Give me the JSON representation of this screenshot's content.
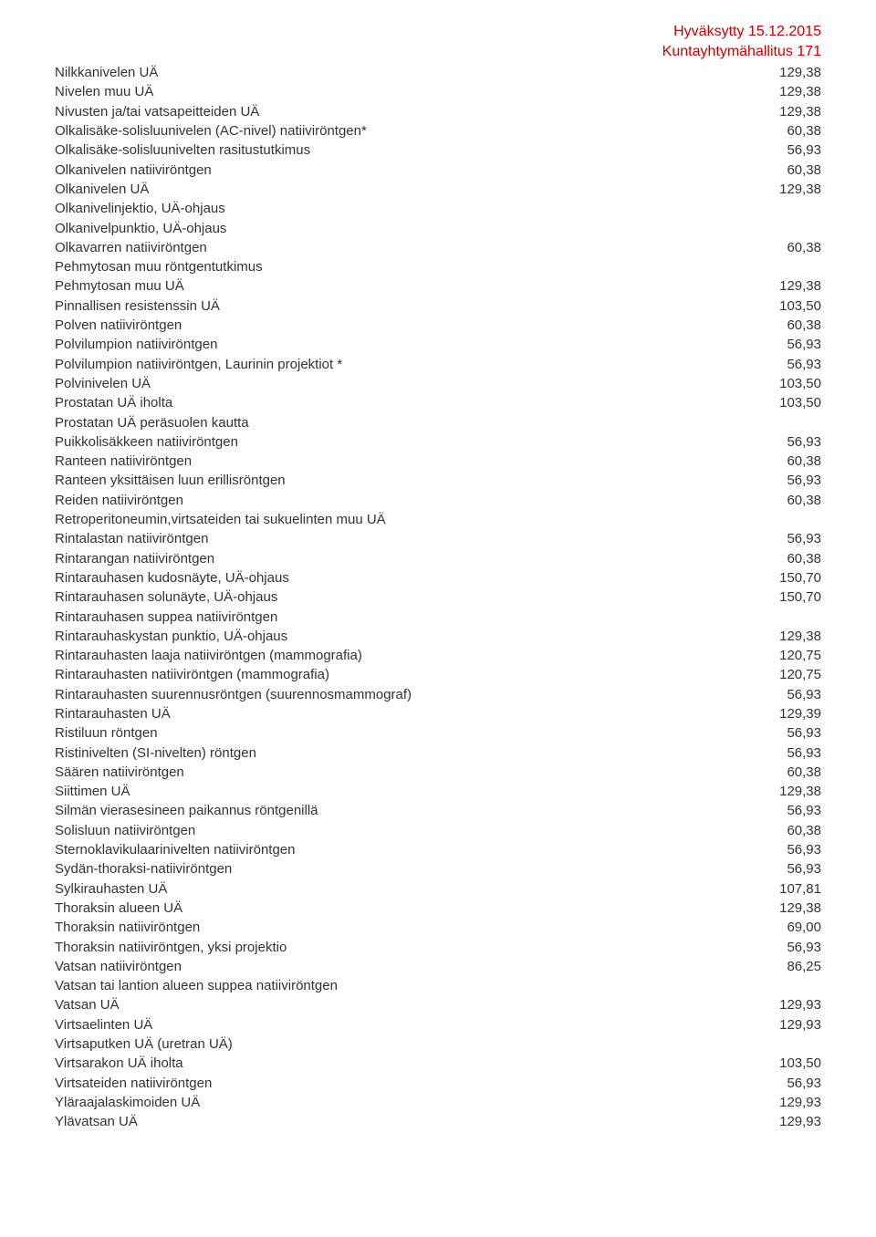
{
  "header": {
    "line1": "Hyväksytty 15.12.2015",
    "line2": "Kuntayhtymähallitus 171"
  },
  "rows": [
    {
      "label": "Nilkkanivelen UÄ",
      "value": "129,38"
    },
    {
      "label": "Nivelen muu UÄ",
      "value": "129,38"
    },
    {
      "label": "Nivusten ja/tai vatsapeitteiden UÄ",
      "value": "129,38"
    },
    {
      "label": "Olkalisäke-solisluunivelen (AC-nivel) natiiviröntgen*",
      "value": "60,38"
    },
    {
      "label": "Olkalisäke-solisluunivelten rasitustutkimus",
      "value": "56,93"
    },
    {
      "label": "Olkanivelen natiiviröntgen",
      "value": "60,38"
    },
    {
      "label": "Olkanivelen UÄ",
      "value": "129,38"
    },
    {
      "label": "Olkanivelinjektio, UÄ-ohjaus",
      "value": ""
    },
    {
      "label": "Olkanivelpunktio, UÄ-ohjaus",
      "value": ""
    },
    {
      "label": "Olkavarren natiiviröntgen",
      "value": "60,38"
    },
    {
      "label": "Pehmytosan muu röntgentutkimus",
      "value": ""
    },
    {
      "label": "Pehmytosan muu UÄ",
      "value": "129,38"
    },
    {
      "label": "Pinnallisen resistenssin UÄ",
      "value": "103,50"
    },
    {
      "label": "Polven natiiviröntgen",
      "value": "60,38"
    },
    {
      "label": "Polvilumpion natiiviröntgen",
      "value": "56,93"
    },
    {
      "label": "Polvilumpion natiiviröntgen, Laurinin projektiot *",
      "value": "56,93"
    },
    {
      "label": "Polvinivelen UÄ",
      "value": "103,50"
    },
    {
      "label": "Prostatan UÄ iholta",
      "value": "103,50"
    },
    {
      "label": "Prostatan UÄ peräsuolen kautta",
      "value": ""
    },
    {
      "label": "Puikkolisäkkeen natiiviröntgen",
      "value": "56,93"
    },
    {
      "label": "Ranteen natiiviröntgen",
      "value": "60,38"
    },
    {
      "label": "Ranteen yksittäisen luun erillisröntgen",
      "value": "56,93"
    },
    {
      "label": "Reiden natiiviröntgen",
      "value": "60,38"
    },
    {
      "label": "Retroperitoneumin,virtsateiden tai sukuelinten muu UÄ",
      "value": ""
    },
    {
      "label": "Rintalastan natiiviröntgen",
      "value": "56,93"
    },
    {
      "label": "Rintarangan natiiviröntgen",
      "value": "60,38"
    },
    {
      "label": "Rintarauhasen kudosnäyte, UÄ-ohjaus",
      "value": "150,70"
    },
    {
      "label": "Rintarauhasen solunäyte, UÄ-ohjaus",
      "value": "150,70"
    },
    {
      "label": "Rintarauhasen suppea natiiviröntgen",
      "value": ""
    },
    {
      "label": "Rintarauhaskystan punktio, UÄ-ohjaus",
      "value": "129,38"
    },
    {
      "label": "Rintarauhasten laaja natiiviröntgen (mammografia)",
      "value": "120,75"
    },
    {
      "label": "Rintarauhasten natiiviröntgen (mammografia)",
      "value": "120,75"
    },
    {
      "label": "Rintarauhasten suurennusröntgen (suurennosmammograf)",
      "value": "56,93"
    },
    {
      "label": "Rintarauhasten UÄ",
      "value": "129,39"
    },
    {
      "label": "Ristiluun röntgen",
      "value": "56,93"
    },
    {
      "label": "Ristinivelten (SI-nivelten) röntgen",
      "value": "56,93"
    },
    {
      "label": "Säären natiiviröntgen",
      "value": "60,38"
    },
    {
      "label": "Siittimen UÄ",
      "value": "129,38"
    },
    {
      "label": "Silmän vierasesineen paikannus röntgenillä",
      "value": "56,93"
    },
    {
      "label": "Solisluun natiiviröntgen",
      "value": "60,38"
    },
    {
      "label": "Sternoklavikulaarinivelten natiiviröntgen",
      "value": "56,93"
    },
    {
      "label": "Sydän-thoraksi-natiiviröntgen",
      "value": "56,93"
    },
    {
      "label": "Sylkirauhasten UÄ",
      "value": "107,81"
    },
    {
      "label": "Thoraksin alueen UÄ",
      "value": "129,38"
    },
    {
      "label": "Thoraksin natiiviröntgen",
      "value": "69,00"
    },
    {
      "label": "Thoraksin natiiviröntgen, yksi projektio",
      "value": "56,93"
    },
    {
      "label": "Vatsan natiiviröntgen",
      "value": "86,25"
    },
    {
      "label": "Vatsan tai lantion alueen suppea natiiviröntgen",
      "value": ""
    },
    {
      "label": "Vatsan UÄ",
      "value": "129,93"
    },
    {
      "label": "Virtsaelinten UÄ",
      "value": "129,93"
    },
    {
      "label": "Virtsaputken UÄ (uretran UÄ)",
      "value": ""
    },
    {
      "label": "Virtsarakon UÄ iholta",
      "value": "103,50"
    },
    {
      "label": "Virtsateiden natiiviröntgen",
      "value": "56,93"
    },
    {
      "label": "Yläraajalaskimoiden UÄ",
      "value": "129,93"
    },
    {
      "label": "Ylävatsan UÄ",
      "value": "129,93"
    }
  ]
}
